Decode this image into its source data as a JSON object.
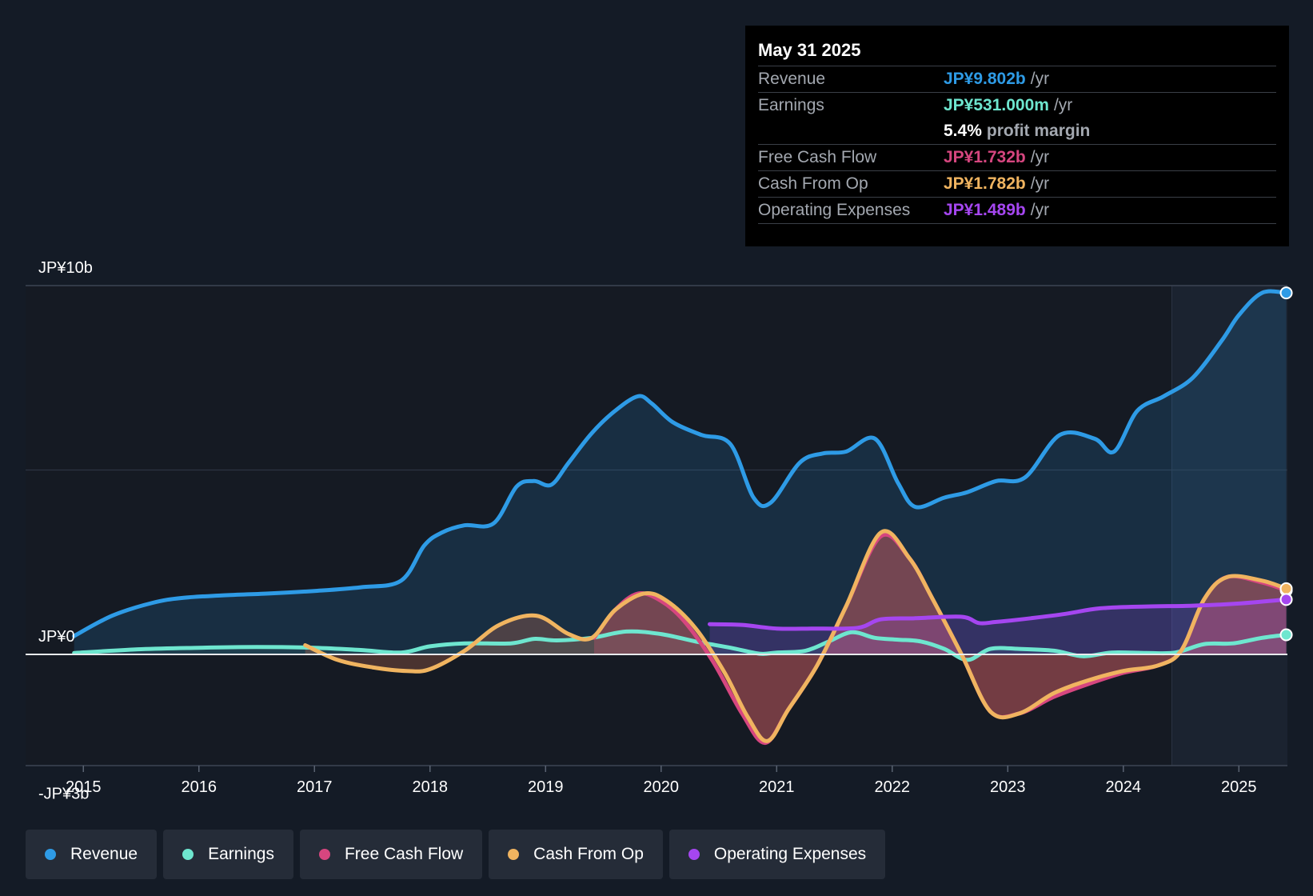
{
  "tooltip": {
    "date": "May 31 2025",
    "rows": [
      {
        "label": "Revenue",
        "value": "JP¥9.802b",
        "unit": "/yr",
        "color": "#2e9be6"
      },
      {
        "label": "Earnings",
        "value": "JP¥531.000m",
        "unit": "/yr",
        "color": "#6ee6cf"
      },
      {
        "label": "",
        "value": "5.4%",
        "unit": "profit margin",
        "color": "#ffffff"
      },
      {
        "label": "Free Cash Flow",
        "value": "JP¥1.732b",
        "unit": "/yr",
        "color": "#d6467f"
      },
      {
        "label": "Cash From Op",
        "value": "JP¥1.782b",
        "unit": "/yr",
        "color": "#f0b460"
      },
      {
        "label": "Operating Expenses",
        "value": "JP¥1.489b",
        "unit": "/yr",
        "color": "#a546f0"
      }
    ]
  },
  "legend": [
    {
      "label": "Revenue",
      "color": "#2e9be6"
    },
    {
      "label": "Earnings",
      "color": "#6ee6cf"
    },
    {
      "label": "Free Cash Flow",
      "color": "#d6467f"
    },
    {
      "label": "Cash From Op",
      "color": "#f0b460"
    },
    {
      "label": "Operating Expenses",
      "color": "#a546f0"
    }
  ],
  "chart_data": {
    "type": "area",
    "title": "",
    "xlabel": "",
    "ylabel": "",
    "y_unit": "JP¥ billions",
    "ylim": [
      -3.0,
      10.0
    ],
    "xlim": [
      2014.5,
      2025.42
    ],
    "y_tick_labels": [
      {
        "value": 10,
        "label": "JP¥10b"
      },
      {
        "value": 0,
        "label": "JP¥0"
      },
      {
        "value": -3,
        "label": "-JP¥3b"
      }
    ],
    "x_ticks": [
      2015,
      2016,
      2017,
      2018,
      2019,
      2020,
      2021,
      2022,
      2023,
      2024,
      2025
    ],
    "x_tick_labels": [
      "2015",
      "2016",
      "2017",
      "2018",
      "2019",
      "2020",
      "2021",
      "2022",
      "2023",
      "2024",
      "2025"
    ],
    "forecast_region_start": 2024.42,
    "series": [
      {
        "name": "Revenue",
        "color": "#2e9be6",
        "x": [
          2014.92,
          2015.25,
          2015.6,
          2015.85,
          2016.2,
          2016.6,
          2017.0,
          2017.4,
          2017.75,
          2017.95,
          2018.1,
          2018.3,
          2018.55,
          2018.75,
          2018.9,
          2019.05,
          2019.2,
          2019.4,
          2019.6,
          2019.8,
          2019.92,
          2020.1,
          2020.35,
          2020.6,
          2020.8,
          2020.95,
          2021.2,
          2021.4,
          2021.6,
          2021.85,
          2022.05,
          2022.2,
          2022.45,
          2022.65,
          2022.9,
          2023.15,
          2023.45,
          2023.75,
          2023.92,
          2024.12,
          2024.35,
          2024.6,
          2024.85,
          2025.0,
          2025.2,
          2025.41
        ],
        "y": [
          0.5,
          1.05,
          1.4,
          1.53,
          1.6,
          1.65,
          1.72,
          1.82,
          2.0,
          2.95,
          3.3,
          3.5,
          3.55,
          4.55,
          4.7,
          4.6,
          5.2,
          6.0,
          6.6,
          7.0,
          6.8,
          6.3,
          5.95,
          5.7,
          4.25,
          4.12,
          5.2,
          5.45,
          5.5,
          5.85,
          4.65,
          4.0,
          4.25,
          4.4,
          4.7,
          4.8,
          5.95,
          5.85,
          5.5,
          6.6,
          7.0,
          7.5,
          8.5,
          9.2,
          9.802,
          9.802
        ]
      },
      {
        "name": "Earnings",
        "color": "#6ee6cf",
        "x": [
          2014.92,
          2015.5,
          2016.0,
          2016.5,
          2017.0,
          2017.4,
          2017.75,
          2018.0,
          2018.3,
          2018.7,
          2018.9,
          2019.1,
          2019.4,
          2019.7,
          2020.0,
          2020.3,
          2020.6,
          2020.85,
          2021.0,
          2021.25,
          2021.45,
          2021.65,
          2021.85,
          2022.05,
          2022.25,
          2022.45,
          2022.65,
          2022.85,
          2023.1,
          2023.4,
          2023.65,
          2023.9,
          2024.2,
          2024.45,
          2024.7,
          2024.95,
          2025.2,
          2025.41
        ],
        "y": [
          0.04,
          0.14,
          0.18,
          0.2,
          0.18,
          0.12,
          0.05,
          0.22,
          0.3,
          0.3,
          0.42,
          0.38,
          0.45,
          0.62,
          0.55,
          0.35,
          0.18,
          0.02,
          0.05,
          0.1,
          0.35,
          0.6,
          0.45,
          0.4,
          0.35,
          0.15,
          -0.15,
          0.15,
          0.15,
          0.1,
          -0.05,
          0.05,
          0.04,
          0.05,
          0.28,
          0.3,
          0.45,
          0.531
        ]
      },
      {
        "name": "Free Cash Flow",
        "color": "#d6467f",
        "x": [
          2019.42,
          2019.6,
          2019.8,
          2020.0,
          2020.2,
          2020.45,
          2020.7,
          2020.9,
          2021.1,
          2021.35,
          2021.6,
          2021.9,
          2022.15,
          2022.35,
          2022.6,
          2022.85,
          2023.1,
          2023.4,
          2023.7,
          2024.0,
          2024.3,
          2024.5,
          2024.7,
          2024.9,
          2025.2,
          2025.41
        ],
        "y": [
          0.45,
          1.2,
          1.65,
          1.45,
          0.9,
          -0.2,
          -1.6,
          -2.4,
          -1.5,
          -0.3,
          1.3,
          3.2,
          2.6,
          1.5,
          0.0,
          -1.55,
          -1.6,
          -1.15,
          -0.8,
          -0.5,
          -0.3,
          0.1,
          1.5,
          2.1,
          1.95,
          1.732
        ]
      },
      {
        "name": "Cash From Op",
        "color": "#f0b460",
        "x": [
          2016.92,
          2017.2,
          2017.5,
          2017.8,
          2018.0,
          2018.3,
          2018.6,
          2018.92,
          2019.2,
          2019.4,
          2019.6,
          2019.85,
          2020.05,
          2020.3,
          2020.55,
          2020.75,
          2020.92,
          2021.1,
          2021.35,
          2021.6,
          2021.9,
          2022.15,
          2022.35,
          2022.6,
          2022.85,
          2023.1,
          2023.4,
          2023.7,
          2024.0,
          2024.3,
          2024.5,
          2024.7,
          2024.9,
          2025.2,
          2025.41
        ],
        "y": [
          0.25,
          -0.15,
          -0.35,
          -0.45,
          -0.4,
          0.1,
          0.8,
          1.05,
          0.55,
          0.45,
          1.2,
          1.65,
          1.45,
          0.7,
          -0.5,
          -1.7,
          -2.35,
          -1.5,
          -0.3,
          1.3,
          3.3,
          2.6,
          1.5,
          0.0,
          -1.55,
          -1.6,
          -1.05,
          -0.7,
          -0.45,
          -0.3,
          0.1,
          1.5,
          2.1,
          2.0,
          1.782
        ]
      },
      {
        "name": "Operating Expenses",
        "color": "#a546f0",
        "x": [
          2020.42,
          2020.7,
          2021.0,
          2021.3,
          2021.7,
          2021.9,
          2022.2,
          2022.6,
          2022.75,
          2022.9,
          2023.2,
          2023.5,
          2023.8,
          2024.2,
          2024.6,
          2025.0,
          2025.41
        ],
        "y": [
          0.82,
          0.8,
          0.7,
          0.7,
          0.72,
          0.95,
          0.98,
          1.02,
          0.85,
          0.88,
          0.98,
          1.1,
          1.25,
          1.3,
          1.32,
          1.38,
          1.489
        ]
      }
    ]
  }
}
